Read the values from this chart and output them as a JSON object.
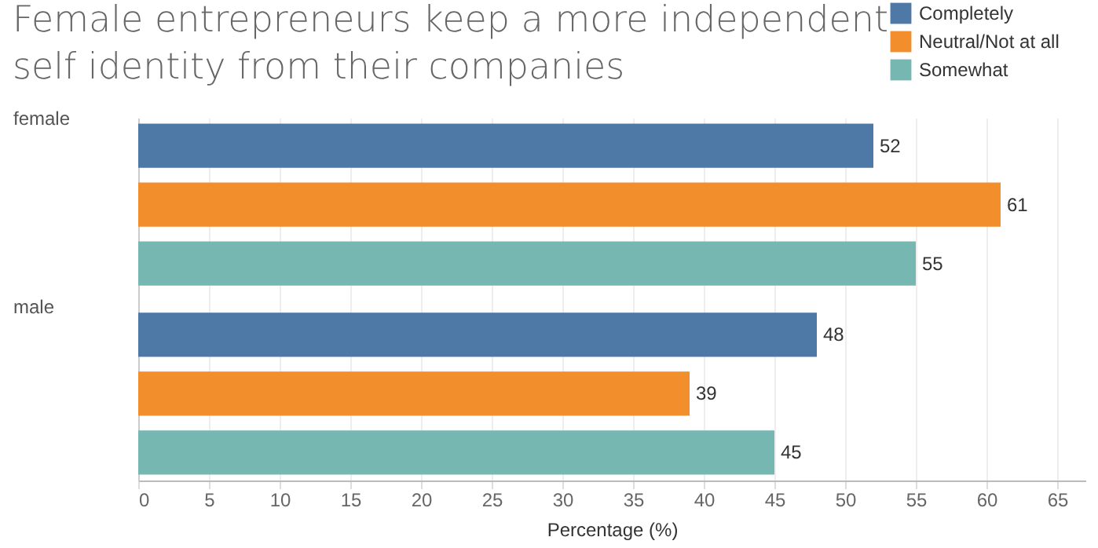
{
  "chart_data": {
    "type": "bar",
    "orientation": "horizontal",
    "title": "Female entrepreneurs keep a more independent self identity from their companies",
    "xlabel": "Percentage (%)",
    "categories": [
      "female",
      "male"
    ],
    "series": [
      {
        "name": "Completely",
        "color": "#4e79a7",
        "values": [
          52,
          48
        ]
      },
      {
        "name": "Neutral/Not at all",
        "color": "#f28e2b",
        "values": [
          61,
          39
        ]
      },
      {
        "name": "Somewhat",
        "color": "#76b7b2",
        "values": [
          55,
          45
        ]
      }
    ],
    "xlim": [
      0,
      67
    ],
    "xticks": [
      0,
      5,
      10,
      15,
      20,
      25,
      30,
      35,
      40,
      45,
      50,
      55,
      60,
      65
    ],
    "grid": "x",
    "legend": "top right",
    "data_labels": true
  }
}
